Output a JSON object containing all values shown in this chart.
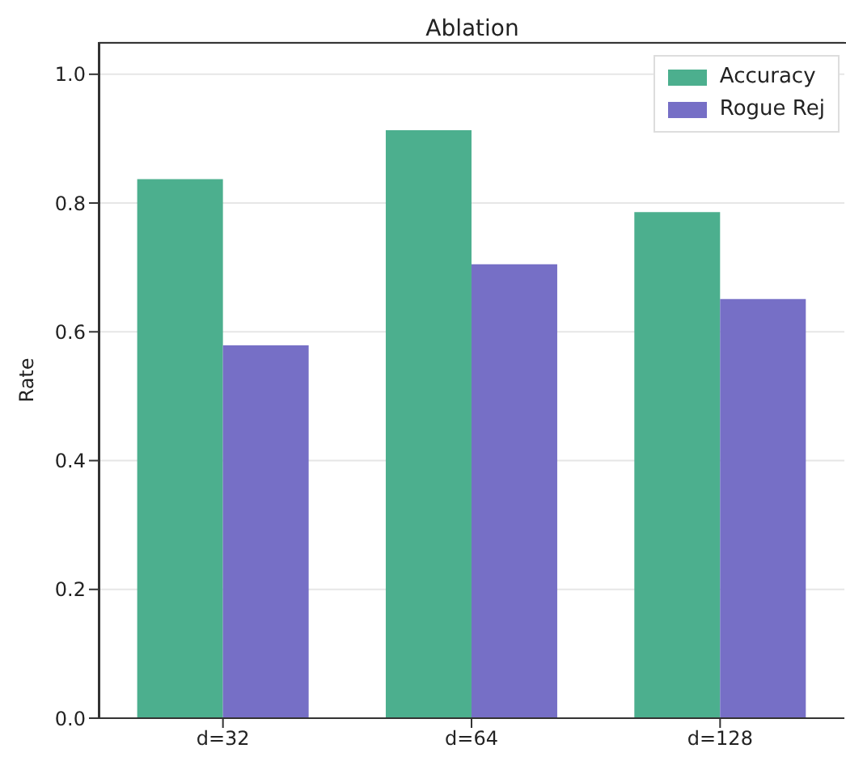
{
  "chart_data": {
    "type": "bar",
    "title": "Ablation",
    "ylabel": "Rate",
    "categories": [
      "d=32",
      "d=64",
      "d=128"
    ],
    "series": [
      {
        "name": "Accuracy",
        "color": "#4caf8e",
        "values": [
          0.837,
          0.913,
          0.786
        ]
      },
      {
        "name": "Rogue Rej",
        "color": "#766fc6",
        "values": [
          0.579,
          0.705,
          0.651
        ]
      }
    ],
    "ylim": [
      0,
      1.05
    ],
    "yticks": [
      {
        "value": 0,
        "label": "0.0"
      },
      {
        "value": 0.2,
        "label": "0.2"
      },
      {
        "value": 0.4,
        "label": "0.4"
      },
      {
        "value": 0.6,
        "label": "0.6"
      },
      {
        "value": 0.8,
        "label": "0.8"
      },
      {
        "value": 1,
        "label": "1.0"
      }
    ],
    "grid": "y",
    "legend": "top right"
  }
}
